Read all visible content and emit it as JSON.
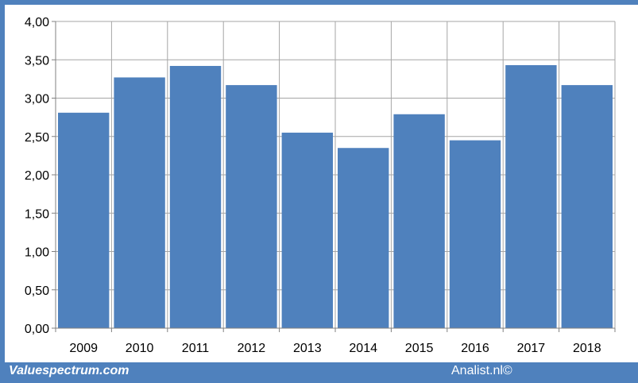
{
  "chart_data": {
    "type": "bar",
    "title": "",
    "xlabel": "",
    "ylabel": "",
    "categories": [
      "2009",
      "2010",
      "2011",
      "2012",
      "2013",
      "2014",
      "2015",
      "2016",
      "2017",
      "2018"
    ],
    "values": [
      2.81,
      3.27,
      3.42,
      3.17,
      2.55,
      2.35,
      2.79,
      2.45,
      3.43,
      3.17
    ],
    "ylim": [
      0,
      4
    ],
    "yticks": [
      "0,00",
      "0,50",
      "1,00",
      "1,50",
      "2,00",
      "2,50",
      "3,00",
      "3,50",
      "4,00"
    ],
    "grid": true,
    "bar_color": "#4f81bd",
    "grid_color": "#a6a6a6"
  },
  "footer": {
    "left_text": "Valuespectrum.com",
    "right_text": "Analist.nl©"
  }
}
